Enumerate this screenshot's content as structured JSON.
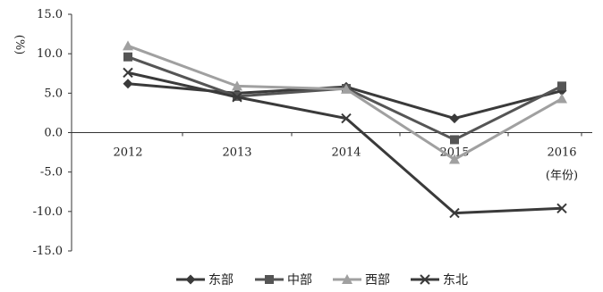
{
  "chart_data": {
    "type": "line",
    "title": "",
    "ylabel": "(%)",
    "xlabel": "(年份)",
    "x": [
      "2012",
      "2013",
      "2014",
      "2015",
      "2016"
    ],
    "ylim": [
      -15,
      15
    ],
    "yticks": [
      "15.0",
      "10.0",
      "5.0",
      "0.0",
      "-5.0",
      "-10.0",
      "-15.0"
    ],
    "ytick_values": [
      15,
      10,
      5,
      0,
      -5,
      -10,
      -15
    ],
    "grid": false,
    "legend_position": "bottom",
    "series": [
      {
        "name": "东部",
        "marker": "diamond",
        "color": "#3a3a3a",
        "values": [
          6.2,
          5.0,
          5.8,
          1.8,
          5.3
        ]
      },
      {
        "name": "中部",
        "marker": "square",
        "color": "#555555",
        "values": [
          9.6,
          4.6,
          5.6,
          -0.9,
          5.9
        ]
      },
      {
        "name": "西部",
        "marker": "triangle",
        "color": "#a0a0a0",
        "values": [
          11.0,
          5.9,
          5.5,
          -3.4,
          4.3
        ]
      },
      {
        "name": "东北",
        "marker": "x",
        "color": "#3a3a3a",
        "values": [
          7.6,
          4.5,
          1.8,
          -10.2,
          -9.6
        ]
      }
    ]
  }
}
